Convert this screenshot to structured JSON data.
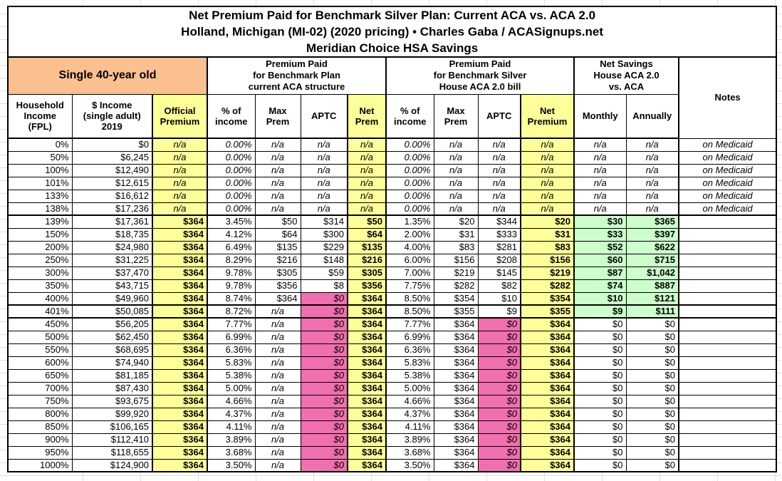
{
  "title": {
    "line1": "Net Premium Paid for Benchmark Silver Plan: Current ACA vs. ACA 2.0",
    "line2": "Holland, Michigan (MI-02) (2020 pricing) • Charles Gaba / ACASignups.net",
    "line3": "Meridian Choice HSA Savings"
  },
  "sections": {
    "demographic": "Single 40-year old",
    "current_aca": "Premium Paid\nfor Benchmark Plan\ncurrent ACA structure",
    "house_aca20": "Premium Paid\nfor Benchmark Silver\nHouse ACA 2.0 bill",
    "net_savings": "Net Savings\nHouse ACA 2.0\nvs. ACA"
  },
  "columns": [
    "Household\nIncome\n(FPL)",
    "$ Income\n(single adult)\n2019",
    "Official\nPremium",
    "% of\nincome",
    "Max\nPrem",
    "APTC",
    "Net\nPrem",
    "% of\nincome",
    "Max\nPrem",
    "APTC",
    "Net\nPremium",
    "Monthly",
    "Annually",
    "Notes"
  ],
  "colors": {
    "header_orange": "#FAC090",
    "highlight_yellow": "#FFFF99",
    "aptc_pink": "#F06FAE",
    "savings_green": "#CCFFCC",
    "border_black": "#000000",
    "gridline_gray": "#DEDEDE"
  },
  "table": {
    "rows": [
      {
        "type": "medicaid",
        "cells": [
          "0%",
          "$0",
          "n/a",
          "0.00%",
          "n/a",
          "n/a",
          "n/a",
          "0.00%",
          "n/a",
          "n/a",
          "n/a",
          "n/a",
          "n/a",
          "on Medicaid"
        ]
      },
      {
        "type": "medicaid",
        "cells": [
          "50%",
          "$6,245",
          "n/a",
          "0.00%",
          "n/a",
          "n/a",
          "n/a",
          "0.00%",
          "n/a",
          "n/a",
          "n/a",
          "n/a",
          "n/a",
          "on Medicaid"
        ]
      },
      {
        "type": "medicaid",
        "cells": [
          "100%",
          "$12,490",
          "n/a",
          "0.00%",
          "n/a",
          "n/a",
          "n/a",
          "0.00%",
          "n/a",
          "n/a",
          "n/a",
          "n/a",
          "n/a",
          "on Medicaid"
        ]
      },
      {
        "type": "medicaid",
        "cells": [
          "101%",
          "$12,615",
          "n/a",
          "0.00%",
          "n/a",
          "n/a",
          "n/a",
          "0.00%",
          "n/a",
          "n/a",
          "n/a",
          "n/a",
          "n/a",
          "on Medicaid"
        ]
      },
      {
        "type": "medicaid",
        "cells": [
          "133%",
          "$16,612",
          "n/a",
          "0.00%",
          "n/a",
          "n/a",
          "n/a",
          "0.00%",
          "n/a",
          "n/a",
          "n/a",
          "n/a",
          "n/a",
          "on Medicaid"
        ]
      },
      {
        "type": "medicaid",
        "thick_bottom": true,
        "cells": [
          "138%",
          "$17,236",
          "n/a",
          "0.00%",
          "n/a",
          "n/a",
          "n/a",
          "0.00%",
          "n/a",
          "n/a",
          "n/a",
          "n/a",
          "n/a",
          "on Medicaid"
        ]
      },
      {
        "type": "savings",
        "cells": [
          "139%",
          "$17,361",
          "$364",
          "3.45%",
          "$50",
          "$314",
          "$50",
          "1.35%",
          "$20",
          "$344",
          "$20",
          "$30",
          "$365",
          ""
        ]
      },
      {
        "type": "savings",
        "cells": [
          "150%",
          "$18,735",
          "$364",
          "4.12%",
          "$64",
          "$300",
          "$64",
          "2.00%",
          "$31",
          "$333",
          "$31",
          "$33",
          "$397",
          ""
        ]
      },
      {
        "type": "savings",
        "cells": [
          "200%",
          "$24,980",
          "$364",
          "6.49%",
          "$135",
          "$229",
          "$135",
          "4.00%",
          "$83",
          "$281",
          "$83",
          "$52",
          "$622",
          ""
        ]
      },
      {
        "type": "savings",
        "cells": [
          "250%",
          "$31,225",
          "$364",
          "8.29%",
          "$216",
          "$148",
          "$216",
          "6.00%",
          "$156",
          "$208",
          "$156",
          "$60",
          "$715",
          ""
        ]
      },
      {
        "type": "savings",
        "cells": [
          "300%",
          "$37,470",
          "$364",
          "9.78%",
          "$305",
          "$59",
          "$305",
          "7.00%",
          "$219",
          "$145",
          "$219",
          "$87",
          "$1,042",
          ""
        ]
      },
      {
        "type": "savings",
        "cells": [
          "350%",
          "$43,715",
          "$364",
          "9.78%",
          "$356",
          "$8",
          "$356",
          "7.75%",
          "$282",
          "$82",
          "$282",
          "$74",
          "$887",
          ""
        ]
      },
      {
        "type": "savings",
        "thick_bottom": true,
        "cells": [
          "400%",
          "$49,960",
          "$364",
          "8.74%",
          "$364",
          "$0",
          "$364",
          "8.50%",
          "$354",
          "$10",
          "$354",
          "$10",
          "$121",
          ""
        ]
      },
      {
        "type": "savings",
        "thick_bottom": true,
        "cells": [
          "401%",
          "$50,085",
          "$364",
          "8.72%",
          "n/a",
          "$0",
          "$364",
          "8.50%",
          "$355",
          "$9",
          "$355",
          "$9",
          "$111",
          ""
        ]
      },
      {
        "type": "nosub",
        "cells": [
          "450%",
          "$56,205",
          "$364",
          "7.77%",
          "n/a",
          "$0",
          "$364",
          "7.77%",
          "$364",
          "$0",
          "$364",
          "$0",
          "$0",
          ""
        ]
      },
      {
        "type": "nosub",
        "cells": [
          "500%",
          "$62,450",
          "$364",
          "6.99%",
          "n/a",
          "$0",
          "$364",
          "6.99%",
          "$364",
          "$0",
          "$364",
          "$0",
          "$0",
          ""
        ]
      },
      {
        "type": "nosub",
        "cells": [
          "550%",
          "$68,695",
          "$364",
          "6.36%",
          "n/a",
          "$0",
          "$364",
          "6.36%",
          "$364",
          "$0",
          "$364",
          "$0",
          "$0",
          ""
        ]
      },
      {
        "type": "nosub",
        "cells": [
          "600%",
          "$74,940",
          "$364",
          "5.83%",
          "n/a",
          "$0",
          "$364",
          "5.83%",
          "$364",
          "$0",
          "$364",
          "$0",
          "$0",
          ""
        ]
      },
      {
        "type": "nosub",
        "cells": [
          "650%",
          "$81,185",
          "$364",
          "5.38%",
          "n/a",
          "$0",
          "$364",
          "5.38%",
          "$364",
          "$0",
          "$364",
          "$0",
          "$0",
          ""
        ]
      },
      {
        "type": "nosub",
        "cells": [
          "700%",
          "$87,430",
          "$364",
          "5.00%",
          "n/a",
          "$0",
          "$364",
          "5.00%",
          "$364",
          "$0",
          "$364",
          "$0",
          "$0",
          ""
        ]
      },
      {
        "type": "nosub",
        "cells": [
          "750%",
          "$93,675",
          "$364",
          "4.66%",
          "n/a",
          "$0",
          "$364",
          "4.66%",
          "$364",
          "$0",
          "$364",
          "$0",
          "$0",
          ""
        ]
      },
      {
        "type": "nosub",
        "cells": [
          "800%",
          "$99,920",
          "$364",
          "4.37%",
          "n/a",
          "$0",
          "$364",
          "4.37%",
          "$364",
          "$0",
          "$364",
          "$0",
          "$0",
          ""
        ]
      },
      {
        "type": "nosub",
        "cells": [
          "850%",
          "$106,165",
          "$364",
          "4.11%",
          "n/a",
          "$0",
          "$364",
          "4.11%",
          "$364",
          "$0",
          "$364",
          "$0",
          "$0",
          ""
        ]
      },
      {
        "type": "nosub",
        "cells": [
          "900%",
          "$112,410",
          "$364",
          "3.89%",
          "n/a",
          "$0",
          "$364",
          "3.89%",
          "$364",
          "$0",
          "$364",
          "$0",
          "$0",
          ""
        ]
      },
      {
        "type": "nosub",
        "cells": [
          "950%",
          "$118,655",
          "$364",
          "3.68%",
          "n/a",
          "$0",
          "$364",
          "3.68%",
          "$364",
          "$0",
          "$364",
          "$0",
          "$0",
          ""
        ]
      },
      {
        "type": "nosub",
        "cells": [
          "1000%",
          "$124,900",
          "$364",
          "3.50%",
          "n/a",
          "$0",
          "$364",
          "3.50%",
          "$364",
          "$0",
          "$364",
          "$0",
          "$0",
          ""
        ]
      }
    ]
  }
}
